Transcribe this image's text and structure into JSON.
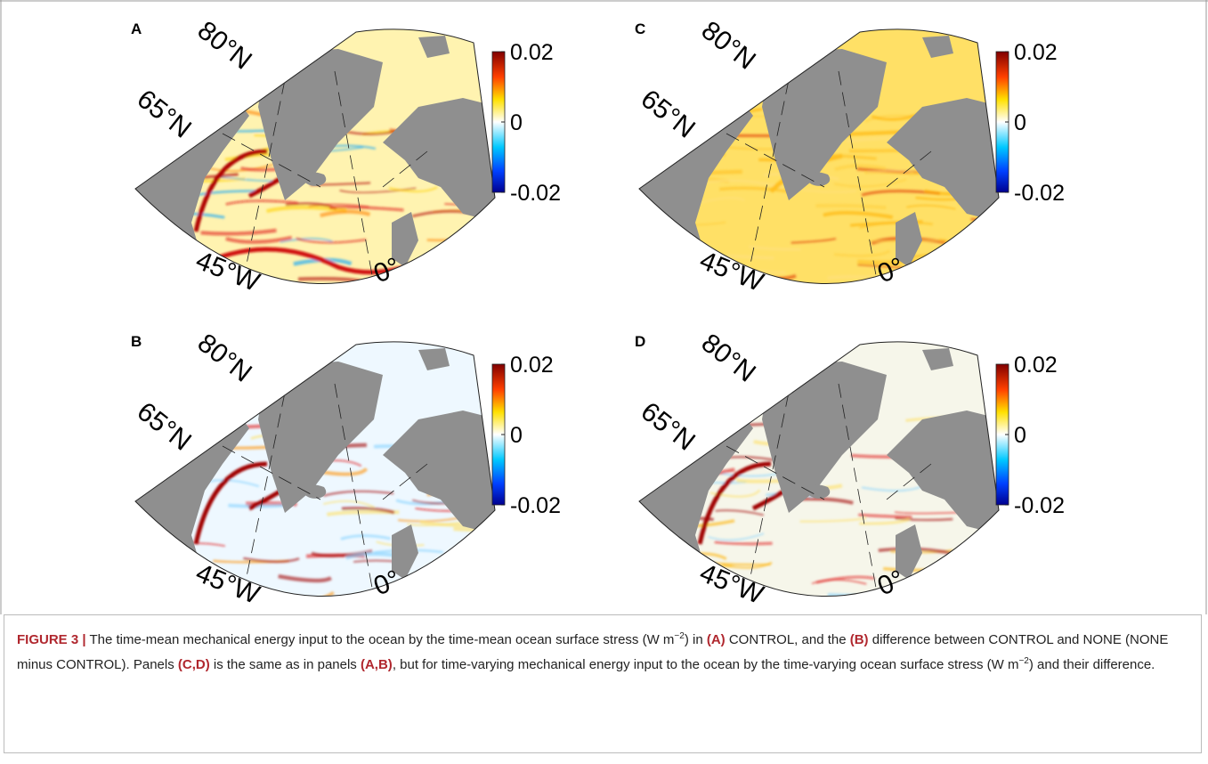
{
  "panels": [
    {
      "label": "A",
      "lat_labels": [
        "80°N",
        "65°N"
      ],
      "lon_labels": [
        "45°W",
        "0°"
      ],
      "colorbar": {
        "ticks": [
          0.02,
          0,
          -0.02
        ]
      }
    },
    {
      "label": "C",
      "lat_labels": [
        "80°N",
        "65°N"
      ],
      "lon_labels": [
        "45°W",
        "0°"
      ],
      "colorbar": {
        "ticks": [
          0.02,
          0,
          -0.02
        ]
      }
    },
    {
      "label": "B",
      "lat_labels": [
        "80°N",
        "65°N"
      ],
      "lon_labels": [
        "45°W",
        "0°"
      ],
      "colorbar": {
        "ticks": [
          0.02,
          0,
          -0.02
        ]
      }
    },
    {
      "label": "D",
      "lat_labels": [
        "80°N",
        "65°N"
      ],
      "lon_labels": [
        "45°W",
        "0°"
      ],
      "colorbar": {
        "ticks": [
          0.02,
          0,
          -0.02
        ]
      }
    }
  ],
  "caption": {
    "parts": [
      {
        "text": "FIGURE 3 |",
        "style": "bold"
      },
      {
        "text": " The time-mean mechanical energy input to the ocean by the time-mean ocean surface stress (W m",
        "style": "normal"
      },
      {
        "text": "−2",
        "style": "sup"
      },
      {
        "text": ") in ",
        "style": "normal"
      },
      {
        "text": "(A)",
        "style": "bold"
      },
      {
        "text": " CONTROL, and the ",
        "style": "normal"
      },
      {
        "text": "(B)",
        "style": "bold"
      },
      {
        "text": " difference between CONTROL and NONE (NONE minus CONTROL). Panels ",
        "style": "normal"
      },
      {
        "text": "(C,D)",
        "style": "bold"
      },
      {
        "text": " is the same as in panels ",
        "style": "normal"
      },
      {
        "text": "(A,B)",
        "style": "bold"
      },
      {
        "text": ", but for time-varying mechanical energy input to the ocean by the time-varying ocean surface stress (W m",
        "style": "normal"
      },
      {
        "text": "−2",
        "style": "sup"
      },
      {
        "text": ") and their difference.",
        "style": "normal"
      }
    ]
  }
}
